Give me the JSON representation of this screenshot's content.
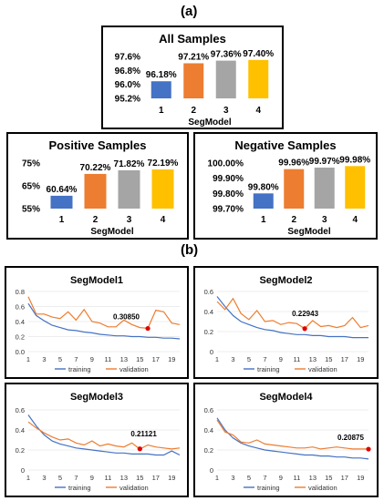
{
  "panels": {
    "a": "(a)",
    "b": "(b)"
  },
  "colors": {
    "blue": "#4472C4",
    "orange": "#ED7D31",
    "gray": "#A5A5A5",
    "gold": "#FFC000",
    "training": "#4472C4",
    "validation": "#ED7D31",
    "marker": "#E00000"
  },
  "chart_data": [
    {
      "id": "all",
      "type": "bar",
      "title": "All Samples",
      "xlabel": "SegModel",
      "ylabel": "",
      "categories": [
        "1",
        "2",
        "3",
        "4"
      ],
      "values": [
        96.18,
        97.21,
        97.36,
        97.4
      ],
      "value_labels": [
        "96.18%",
        "97.21%",
        "97.36%",
        "97.40%"
      ],
      "ylim": [
        95.2,
        97.6
      ],
      "yticks": [
        95.2,
        96.0,
        96.8,
        97.6
      ],
      "ytick_labels": [
        "95.2%",
        "96.0%",
        "96.8%",
        "97.6%"
      ],
      "bar_colors": [
        "#4472C4",
        "#ED7D31",
        "#A5A5A5",
        "#FFC000"
      ]
    },
    {
      "id": "pos",
      "type": "bar",
      "title": "Positive Samples",
      "xlabel": "SegModel",
      "ylabel": "",
      "categories": [
        "1",
        "2",
        "3",
        "4"
      ],
      "values": [
        60.64,
        70.22,
        71.82,
        72.19
      ],
      "value_labels": [
        "60.64%",
        "70.22%",
        "71.82%",
        "72.19%"
      ],
      "ylim": [
        55,
        75
      ],
      "yticks": [
        55,
        65,
        75
      ],
      "ytick_labels": [
        "55%",
        "65%",
        "75%"
      ],
      "bar_colors": [
        "#4472C4",
        "#ED7D31",
        "#A5A5A5",
        "#FFC000"
      ]
    },
    {
      "id": "neg",
      "type": "bar",
      "title": "Negative Samples",
      "xlabel": "SegModel",
      "ylabel": "",
      "categories": [
        "1",
        "2",
        "3",
        "4"
      ],
      "values": [
        99.8,
        99.96,
        99.97,
        99.98
      ],
      "value_labels": [
        "99.80%",
        "99.96%",
        "99.97%",
        "99.98%"
      ],
      "ylim": [
        99.7,
        100.0
      ],
      "yticks": [
        99.7,
        99.8,
        99.9,
        100.0
      ],
      "ytick_labels": [
        "99.70%",
        "99.80%",
        "99.90%",
        "100.00%"
      ],
      "bar_colors": [
        "#4472C4",
        "#ED7D31",
        "#A5A5A5",
        "#FFC000"
      ]
    },
    {
      "id": "seg1",
      "type": "line",
      "title": "SegModel1",
      "x": [
        1,
        2,
        3,
        4,
        5,
        6,
        7,
        8,
        9,
        10,
        11,
        12,
        13,
        14,
        15,
        16,
        17,
        18,
        19,
        20
      ],
      "xtick_labels": [
        "1",
        "3",
        "5",
        "7",
        "9",
        "11",
        "13",
        "15",
        "17",
        "19"
      ],
      "ylim": [
        0,
        0.8
      ],
      "yticks": [
        0,
        0.2,
        0.4,
        0.6,
        0.8
      ],
      "ytick_labels": [
        "0.0",
        "0.2",
        "0.4",
        "0.6",
        "0.8"
      ],
      "series": [
        {
          "name": "training",
          "values": [
            0.64,
            0.48,
            0.41,
            0.35,
            0.32,
            0.29,
            0.28,
            0.26,
            0.25,
            0.23,
            0.22,
            0.21,
            0.21,
            0.2,
            0.2,
            0.19,
            0.19,
            0.18,
            0.18,
            0.17
          ]
        },
        {
          "name": "validation",
          "values": [
            0.73,
            0.5,
            0.5,
            0.46,
            0.44,
            0.53,
            0.42,
            0.56,
            0.4,
            0.38,
            0.33,
            0.33,
            0.42,
            0.36,
            0.32,
            0.31,
            0.55,
            0.53,
            0.38,
            0.36
          ]
        }
      ],
      "marker": {
        "x": 16,
        "y": 0.3085,
        "label": "0.30850"
      }
    },
    {
      "id": "seg2",
      "type": "line",
      "title": "SegModel2",
      "x": [
        1,
        2,
        3,
        4,
        5,
        6,
        7,
        8,
        9,
        10,
        11,
        12,
        13,
        14,
        15,
        16,
        17,
        18,
        19,
        20
      ],
      "xtick_labels": [
        "1",
        "3",
        "5",
        "7",
        "9",
        "11",
        "13",
        "15",
        "17",
        "19"
      ],
      "ylim": [
        0,
        0.6
      ],
      "yticks": [
        0,
        0.2,
        0.4,
        0.6
      ],
      "ytick_labels": [
        "0",
        "0.2",
        "0.4",
        "0.6"
      ],
      "series": [
        {
          "name": "training",
          "values": [
            0.55,
            0.45,
            0.36,
            0.3,
            0.27,
            0.24,
            0.22,
            0.21,
            0.19,
            0.18,
            0.17,
            0.17,
            0.16,
            0.16,
            0.15,
            0.15,
            0.15,
            0.14,
            0.14,
            0.14
          ]
        },
        {
          "name": "validation",
          "values": [
            0.5,
            0.42,
            0.53,
            0.38,
            0.32,
            0.41,
            0.3,
            0.31,
            0.27,
            0.29,
            0.28,
            0.23,
            0.31,
            0.25,
            0.26,
            0.24,
            0.26,
            0.34,
            0.24,
            0.26
          ]
        }
      ],
      "marker": {
        "x": 12,
        "y": 0.22943,
        "label": "0.22943"
      }
    },
    {
      "id": "seg3",
      "type": "line",
      "title": "SegModel3",
      "x": [
        1,
        2,
        3,
        4,
        5,
        6,
        7,
        8,
        9,
        10,
        11,
        12,
        13,
        14,
        15,
        16,
        17,
        18,
        19,
        20
      ],
      "xtick_labels": [
        "1",
        "3",
        "5",
        "7",
        "9",
        "11",
        "13",
        "15",
        "17",
        "19"
      ],
      "ylim": [
        0,
        0.6
      ],
      "yticks": [
        0,
        0.2,
        0.4,
        0.6
      ],
      "ytick_labels": [
        "0",
        "0.2",
        "0.4",
        "0.6"
      ],
      "series": [
        {
          "name": "training",
          "values": [
            0.55,
            0.44,
            0.35,
            0.29,
            0.26,
            0.24,
            0.22,
            0.21,
            0.2,
            0.19,
            0.18,
            0.17,
            0.17,
            0.16,
            0.16,
            0.16,
            0.15,
            0.15,
            0.19,
            0.15
          ]
        },
        {
          "name": "validation",
          "values": [
            0.48,
            0.42,
            0.37,
            0.33,
            0.3,
            0.31,
            0.27,
            0.25,
            0.29,
            0.24,
            0.26,
            0.24,
            0.23,
            0.27,
            0.21,
            0.25,
            0.23,
            0.22,
            0.21,
            0.22
          ]
        }
      ],
      "marker": {
        "x": 15,
        "y": 0.21121,
        "label": "0.21121"
      }
    },
    {
      "id": "seg4",
      "type": "line",
      "title": "SegModel4",
      "x": [
        1,
        2,
        3,
        4,
        5,
        6,
        7,
        8,
        9,
        10,
        11,
        12,
        13,
        14,
        15,
        16,
        17,
        18,
        19,
        20
      ],
      "xtick_labels": [
        "1",
        "3",
        "5",
        "7",
        "9",
        "11",
        "13",
        "15",
        "17",
        "19"
      ],
      "ylim": [
        0,
        0.6
      ],
      "yticks": [
        0,
        0.2,
        0.4,
        0.6
      ],
      "ytick_labels": [
        "0",
        "0.2",
        "0.4",
        "0.6"
      ],
      "series": [
        {
          "name": "training",
          "values": [
            0.52,
            0.4,
            0.32,
            0.27,
            0.24,
            0.22,
            0.2,
            0.19,
            0.18,
            0.17,
            0.16,
            0.15,
            0.15,
            0.14,
            0.14,
            0.13,
            0.13,
            0.12,
            0.12,
            0.11
          ]
        },
        {
          "name": "validation",
          "values": [
            0.5,
            0.38,
            0.35,
            0.28,
            0.27,
            0.3,
            0.26,
            0.25,
            0.24,
            0.23,
            0.22,
            0.22,
            0.23,
            0.21,
            0.22,
            0.23,
            0.22,
            0.21,
            0.21,
            0.21
          ]
        }
      ],
      "marker": {
        "x": 20,
        "y": 0.20875,
        "label": "0.20875"
      }
    }
  ]
}
